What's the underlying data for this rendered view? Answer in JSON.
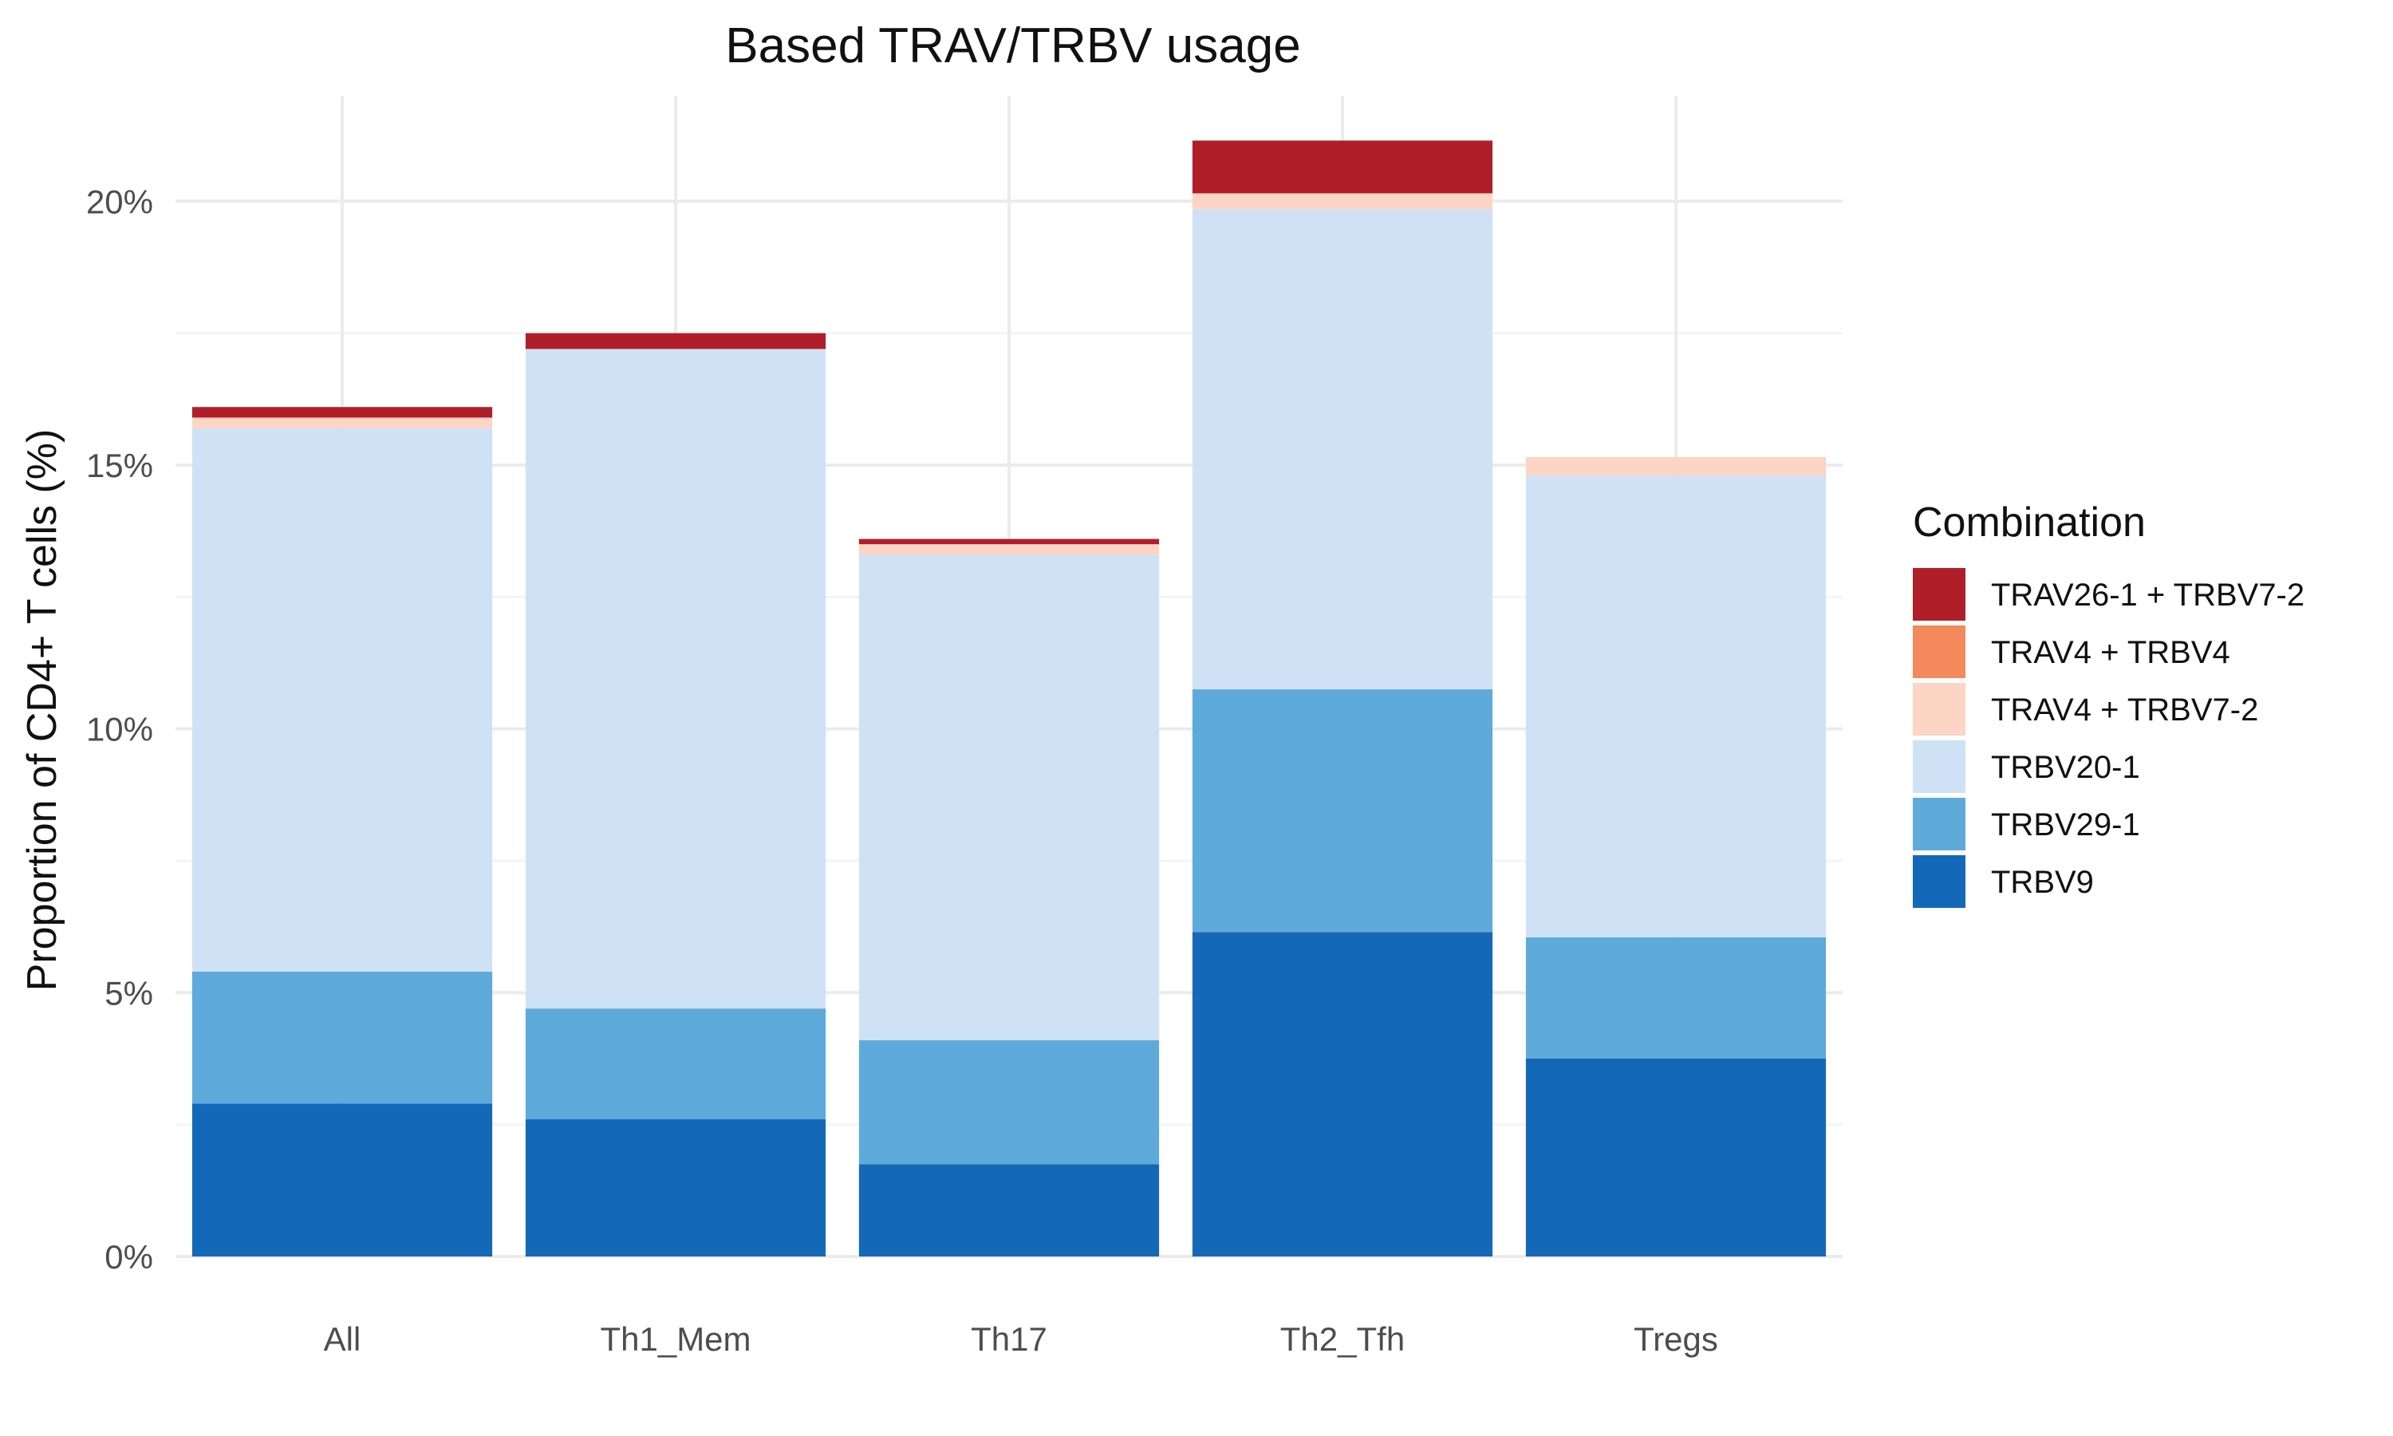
{
  "chart_data": {
    "type": "bar",
    "stacked": true,
    "title": "Based TRAV/TRBV usage",
    "xlabel": "",
    "ylabel": "Proportion of CD4+ T cells (%)",
    "ylim": [
      0,
      22
    ],
    "yticks": [
      0,
      5,
      10,
      15,
      20
    ],
    "ytick_labels": [
      "0%",
      "5%",
      "10%",
      "15%",
      "20%"
    ],
    "grid": true,
    "legend_position": "right",
    "legend_title": "Combination",
    "categories": [
      "All",
      "Th1_Mem",
      "Th17",
      "Th2_Tfh",
      "Tregs"
    ],
    "series": [
      {
        "name": "TRBV9",
        "color": "#1468b8",
        "values": [
          2.9,
          2.6,
          1.75,
          6.15,
          3.75
        ]
      },
      {
        "name": "TRBV29-1",
        "color": "#5eaada",
        "values": [
          2.5,
          2.1,
          2.35,
          4.6,
          2.3
        ]
      },
      {
        "name": "TRBV20-1",
        "color": "#cfe2f5",
        "values": [
          10.3,
          12.5,
          9.2,
          9.1,
          8.75
        ]
      },
      {
        "name": "TRAV4 + TRBV7-2",
        "color": "#fcd5c4",
        "values": [
          0.2,
          0.0,
          0.2,
          0.3,
          0.35
        ]
      },
      {
        "name": "TRAV4 + TRBV4",
        "color": "#f4895c",
        "values": [
          0.0,
          0.0,
          0.0,
          0.0,
          0.0
        ]
      },
      {
        "name": "TRAV26-1 + TRBV7-2",
        "color": "#b01f29",
        "values": [
          0.2,
          0.3,
          0.1,
          1.0,
          0.0
        ]
      }
    ],
    "legend_order": [
      "TRAV26-1 + TRBV7-2",
      "TRAV4 + TRBV4",
      "TRAV4 + TRBV7-2",
      "TRBV20-1",
      "TRBV29-1",
      "TRBV9"
    ]
  }
}
